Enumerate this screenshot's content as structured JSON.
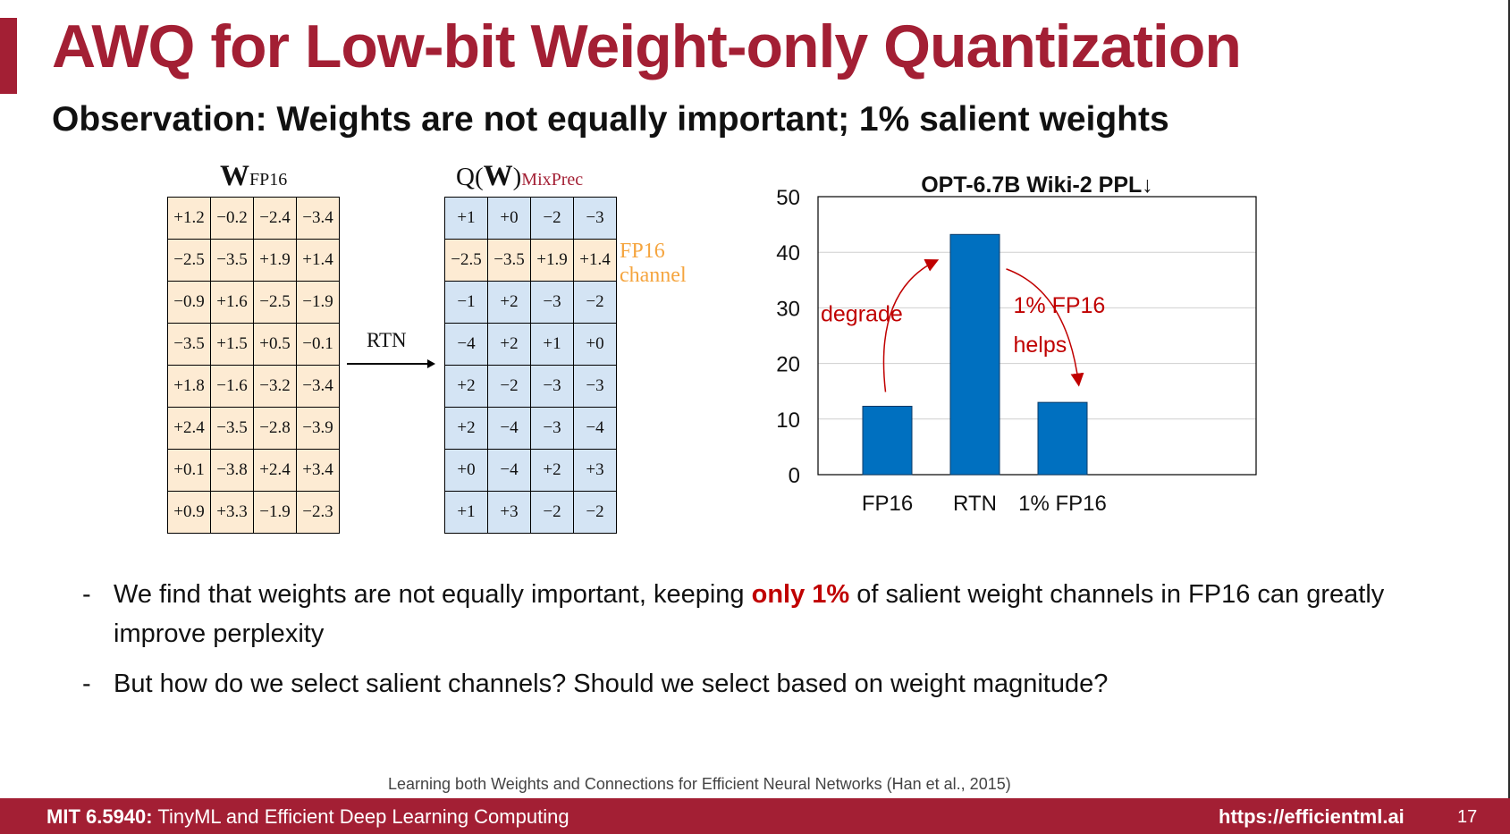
{
  "slide": {
    "title": "AWQ for Low-bit Weight-only Quantization",
    "subtitle": "Observation: Weights are not equally important; 1% salient weights"
  },
  "weight_matrix": {
    "label_main": "W",
    "label_sub": "FP16",
    "rows": [
      [
        "+1.2",
        "−0.2",
        "−2.4",
        "−3.4"
      ],
      [
        "−2.5",
        "−3.5",
        "+1.9",
        "+1.4"
      ],
      [
        "−0.9",
        "+1.6",
        "−2.5",
        "−1.9"
      ],
      [
        "−3.5",
        "+1.5",
        "+0.5",
        "−0.1"
      ],
      [
        "+1.8",
        "−1.6",
        "−3.2",
        "−3.4"
      ],
      [
        "+2.4",
        "−3.5",
        "−2.8",
        "−3.9"
      ],
      [
        "+0.1",
        "−3.8",
        "+2.4",
        "+3.4"
      ],
      [
        "+0.9",
        "+3.3",
        "−1.9",
        "−2.3"
      ]
    ]
  },
  "arrow_label": "RTN",
  "quant_matrix": {
    "label_prefix": "Q(",
    "label_main": "W",
    "label_suffix": ")",
    "label_sub": "MixPrec",
    "rows": [
      [
        "+1",
        "+0",
        "−2",
        "−3"
      ],
      [
        "−2.5",
        "−3.5",
        "+1.9",
        "+1.4"
      ],
      [
        "−1",
        "+2",
        "−3",
        "−2"
      ],
      [
        "−4",
        "+2",
        "+1",
        "+0"
      ],
      [
        "+2",
        "−2",
        "−3",
        "−3"
      ],
      [
        "+2",
        "−4",
        "−3",
        "−4"
      ],
      [
        "+0",
        "−4",
        "+2",
        "+3"
      ],
      [
        "+1",
        "+3",
        "−2",
        "−2"
      ]
    ],
    "fp16_channel_label_line1": "FP16",
    "fp16_channel_label_line2": "channel"
  },
  "chart_data": {
    "type": "bar",
    "title": "OPT-6.7B Wiki-2 PPL↓",
    "categories": [
      "FP16",
      "RTN",
      "1% FP16"
    ],
    "values": [
      12.3,
      43.2,
      13.0
    ],
    "ylim": [
      0,
      50
    ],
    "yticks": [
      "0",
      "10",
      "20",
      "30",
      "40",
      "50"
    ],
    "grid": true,
    "xlabel": "",
    "ylabel": "",
    "bar_color": "#0070c0",
    "annotations": {
      "degrade": "degrade",
      "helps_line1": "1% FP16",
      "helps_line2": "helps"
    }
  },
  "bullets": [
    {
      "before": "We find that weights are not equally important, keeping ",
      "highlight": "only 1%",
      "after": " of salient weight channels in FP16 can greatly improve perplexity"
    },
    {
      "before": "But how do we select salient channels? Should we select based on weight magnitude?",
      "highlight": "",
      "after": ""
    }
  ],
  "bullet_marker": "-",
  "citation": "Learning both Weights and Connections for Efficient Neural Networks (Han et al., 2015)",
  "footer": {
    "course_code": "MIT 6.5940:",
    "course_name": " TinyML and Efficient Deep Learning Computing",
    "url": "https://efficientml.ai",
    "page": "17"
  },
  "colors": {
    "brand": "#a31f34",
    "fp16_cell": "#fdebd3",
    "quant_cell": "#d4e4f4",
    "fp16_label": "#f5a53f",
    "annotation": "#c00000"
  }
}
